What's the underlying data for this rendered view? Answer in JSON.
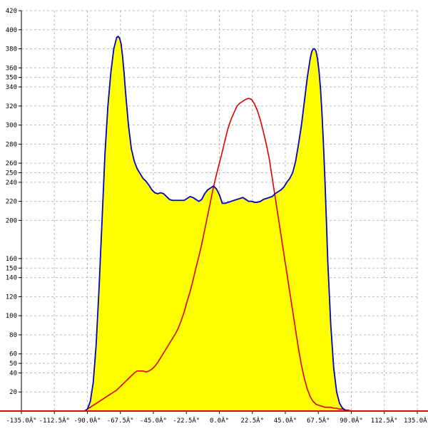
{
  "chart_data": {
    "type": "area",
    "title": "",
    "xlabel": "",
    "ylabel": "",
    "xlim": [
      -135,
      135
    ],
    "ylim": [
      0,
      420
    ],
    "grid": true,
    "x_ticks": [
      -135,
      -112.5,
      -90,
      -67.5,
      -45,
      -22.5,
      0,
      22.5,
      45,
      67.5,
      90,
      112.5,
      135
    ],
    "x_tick_labels": [
      "-135.0Â°",
      "-112.5Â°",
      "-90.0Â°",
      "-67.5Â°",
      "-45.0Â°",
      "-22.5Â°",
      "0.0Â°",
      "22.5Â°",
      "45.0Â°",
      "67.5Â°",
      "90.0Â°",
      "112.5Â°",
      "135.0Â°"
    ],
    "y_ticks": [
      20,
      40,
      50,
      60,
      80,
      100,
      120,
      140,
      150,
      160,
      200,
      220,
      240,
      250,
      260,
      280,
      300,
      320,
      340,
      350,
      360,
      380,
      400,
      420
    ],
    "y_tick_labels": [
      "20",
      "40",
      "50",
      "60",
      "80",
      "100",
      "120",
      "140",
      "150",
      "160",
      "200",
      "220",
      "240",
      "250",
      "260",
      "280",
      "300",
      "320",
      "340",
      "350",
      "360",
      "380",
      "400",
      "420"
    ],
    "colors": {
      "fill": "#ffff00",
      "blue_line": "#0000cc",
      "red_line": "#dd0000",
      "grid": "#bbbbbb",
      "baseline": "#dd0000"
    },
    "series": [
      {
        "color": "blue",
        "x": [
          -92,
          -90,
          -88,
          -86,
          -84,
          -82,
          -80,
          -78,
          -76,
          -74,
          -72,
          -70,
          -69,
          -68,
          -67,
          -66,
          -65,
          -64,
          -62,
          -60,
          -58,
          -56,
          -54,
          -52,
          -50,
          -48,
          -46,
          -44,
          -42,
          -40,
          -38,
          -36,
          -34,
          -32,
          -30,
          -28,
          -26,
          -24,
          -22,
          -20,
          -18,
          -16,
          -14,
          -12,
          -10,
          -8,
          -6,
          -4,
          -2,
          0,
          2,
          4,
          6,
          8,
          10,
          12,
          14,
          16,
          18,
          20,
          22,
          24,
          26,
          28,
          30,
          32,
          34,
          36,
          38,
          40,
          42,
          44,
          46,
          48,
          50,
          52,
          54,
          56,
          58,
          60,
          62,
          63,
          64,
          65,
          66,
          67,
          68,
          69,
          70,
          71,
          72,
          73,
          74,
          76,
          78,
          80,
          82,
          84,
          86,
          88,
          90,
          92
        ],
        "y": [
          0,
          2,
          10,
          30,
          70,
          130,
          200,
          270,
          320,
          355,
          380,
          392,
          393,
          391,
          385,
          372,
          355,
          335,
          300,
          275,
          262,
          254,
          249,
          244,
          241,
          237,
          232,
          229,
          228,
          229,
          228,
          225,
          222,
          221,
          221,
          221,
          221,
          221,
          223,
          225,
          224,
          222,
          220,
          222,
          228,
          232,
          234,
          236,
          233,
          227,
          218,
          218,
          219,
          220,
          221,
          222,
          223,
          224,
          222,
          220,
          220,
          219,
          219,
          220,
          222,
          223,
          224,
          225,
          228,
          230,
          232,
          235,
          240,
          244,
          250,
          262,
          280,
          300,
          325,
          350,
          370,
          377,
          380,
          380,
          377,
          369,
          356,
          338,
          312,
          280,
          243,
          200,
          155,
          90,
          45,
          20,
          8,
          3,
          1,
          0,
          0,
          0
        ]
      },
      {
        "color": "red",
        "x": [
          -92,
          -90,
          -88,
          -86,
          -84,
          -82,
          -80,
          -78,
          -76,
          -74,
          -72,
          -70,
          -68,
          -66,
          -64,
          -62,
          -60,
          -58,
          -56,
          -54,
          -52,
          -50,
          -48,
          -46,
          -44,
          -42,
          -40,
          -38,
          -36,
          -34,
          -32,
          -30,
          -28,
          -26,
          -24,
          -22,
          -20,
          -18,
          -16,
          -14,
          -12,
          -10,
          -8,
          -6,
          -4,
          -2,
          0,
          2,
          4,
          6,
          8,
          10,
          12,
          14,
          16,
          18,
          20,
          22,
          24,
          26,
          28,
          30,
          32,
          34,
          36,
          38,
          40,
          42,
          44,
          46,
          48,
          50,
          52,
          54,
          56,
          58,
          60,
          62,
          64,
          66,
          68,
          70,
          72,
          74,
          76,
          78,
          80,
          82,
          84,
          86,
          88,
          90,
          92
        ],
        "y": [
          0,
          2,
          4,
          6,
          8,
          10,
          12,
          14,
          16,
          18,
          20,
          22,
          25,
          28,
          31,
          34,
          37,
          40,
          42,
          42,
          42,
          41,
          42,
          44,
          47,
          51,
          56,
          61,
          66,
          71,
          76,
          81,
          87,
          95,
          104,
          115,
          125,
          137,
          150,
          162,
          175,
          190,
          205,
          220,
          235,
          248,
          260,
          272,
          285,
          297,
          306,
          313,
          320,
          323,
          325,
          327,
          328,
          327,
          322,
          315,
          305,
          293,
          280,
          265,
          245,
          225,
          205,
          185,
          165,
          145,
          125,
          105,
          85,
          65,
          48,
          34,
          23,
          15,
          10,
          7,
          6,
          5,
          4,
          4,
          4,
          3,
          3,
          2,
          2,
          1,
          1,
          0,
          0
        ]
      }
    ]
  }
}
